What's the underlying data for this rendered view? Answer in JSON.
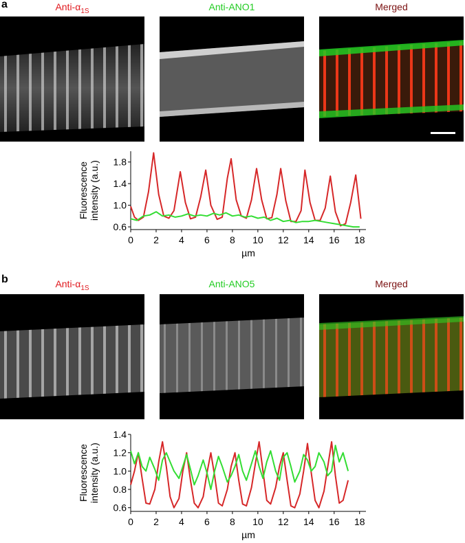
{
  "figure": {
    "a": {
      "letter": "a",
      "titles": {
        "alpha_prefix": "Anti-α",
        "alpha_sub": "1S",
        "ano": "Anti-ANO1",
        "merged": "Merged"
      }
    },
    "b": {
      "letter": "b",
      "titles": {
        "alpha_prefix": "Anti-α",
        "alpha_sub": "1S",
        "ano": "Anti-ANO5",
        "merged": "Merged"
      }
    }
  },
  "colors": {
    "red": "#d62728",
    "green": "#33dd33",
    "title_red": "#e0191e",
    "title_green": "#22cc22",
    "title_merged": "#7a1010"
  },
  "chart_data": [
    {
      "type": "line",
      "title": "",
      "xlabel": "µm",
      "ylabel": "Fluorescence intensity (a.u.)",
      "ylabel_lines": [
        "Fluorescence",
        "intensity (a.u.)"
      ],
      "xlim": [
        0,
        18.5
      ],
      "ylim": [
        0.55,
        2.0
      ],
      "xticks": [
        0,
        2,
        4,
        6,
        8,
        10,
        12,
        14,
        16,
        18
      ],
      "yticks": [
        0.6,
        1.0,
        1.4,
        1.8
      ],
      "ytick_labels": [
        "0.6",
        "1.0",
        "1.4",
        "1.8"
      ],
      "series": [
        {
          "color": "red",
          "x": [
            0.0,
            0.3,
            0.6,
            1.0,
            1.4,
            1.8,
            2.2,
            2.6,
            3.0,
            3.4,
            3.9,
            4.3,
            4.7,
            5.1,
            5.5,
            5.9,
            6.3,
            6.8,
            7.2,
            7.6,
            7.9,
            8.3,
            8.7,
            9.1,
            9.5,
            9.9,
            10.3,
            10.7,
            11.1,
            11.5,
            11.8,
            12.2,
            12.6,
            13.0,
            13.4,
            13.7,
            14.1,
            14.5,
            14.9,
            15.3,
            15.7,
            16.1,
            16.5,
            16.9,
            17.3,
            17.7,
            18.1
          ],
          "y": [
            0.98,
            0.78,
            0.72,
            0.78,
            1.25,
            1.97,
            1.2,
            0.8,
            0.76,
            0.9,
            1.62,
            1.05,
            0.75,
            0.78,
            1.15,
            1.65,
            1.0,
            0.74,
            0.78,
            1.5,
            1.86,
            1.1,
            0.8,
            0.76,
            1.1,
            1.68,
            1.1,
            0.75,
            0.77,
            1.2,
            1.68,
            1.08,
            0.7,
            0.7,
            0.9,
            1.65,
            1.05,
            0.72,
            0.72,
            0.95,
            1.54,
            0.88,
            0.62,
            0.66,
            1.05,
            1.56,
            0.75
          ]
        },
        {
          "color": "green",
          "x": [
            0.0,
            0.5,
            1.0,
            1.5,
            2.0,
            2.5,
            3.0,
            3.5,
            4.0,
            4.5,
            5.0,
            5.5,
            6.0,
            6.5,
            7.0,
            7.5,
            8.0,
            8.5,
            9.0,
            9.5,
            10.0,
            10.5,
            11.0,
            11.5,
            12.0,
            12.5,
            13.0,
            13.5,
            14.0,
            14.5,
            15.0,
            15.5,
            16.0,
            16.5,
            17.0,
            17.5,
            18.0
          ],
          "y": [
            0.75,
            0.72,
            0.8,
            0.82,
            0.88,
            0.8,
            0.82,
            0.78,
            0.8,
            0.84,
            0.8,
            0.82,
            0.8,
            0.85,
            0.82,
            0.86,
            0.8,
            0.82,
            0.78,
            0.8,
            0.76,
            0.78,
            0.72,
            0.76,
            0.7,
            0.72,
            0.68,
            0.7,
            0.7,
            0.72,
            0.7,
            0.68,
            0.66,
            0.64,
            0.62,
            0.6,
            0.6
          ]
        }
      ]
    },
    {
      "type": "line",
      "title": "",
      "xlabel": "µm",
      "ylabel": "Fluorescence intensity (a.u.)",
      "ylabel_lines": [
        "Fluorescence",
        "intensity (a.u.)"
      ],
      "xlim": [
        0,
        18.5
      ],
      "ylim": [
        0.56,
        1.4
      ],
      "xticks": [
        0,
        2,
        4,
        6,
        8,
        10,
        12,
        14,
        16,
        18
      ],
      "yticks": [
        0.6,
        0.8,
        1.0,
        1.2,
        1.4
      ],
      "ytick_labels": [
        "0.6",
        "0.8",
        "1.0",
        "1.2",
        "1.4"
      ],
      "series": [
        {
          "color": "red",
          "x": [
            0.0,
            0.3,
            0.6,
            0.9,
            1.2,
            1.5,
            1.9,
            2.2,
            2.5,
            2.8,
            3.1,
            3.4,
            3.8,
            4.1,
            4.4,
            4.7,
            5.0,
            5.3,
            5.7,
            6.0,
            6.3,
            6.6,
            6.9,
            7.2,
            7.6,
            7.9,
            8.2,
            8.5,
            8.8,
            9.1,
            9.5,
            9.8,
            10.1,
            10.4,
            10.7,
            11.0,
            11.4,
            11.7,
            12.0,
            12.3,
            12.6,
            12.9,
            13.3,
            13.6,
            13.9,
            14.2,
            14.5,
            14.8,
            15.2,
            15.5,
            15.8,
            16.1,
            16.4,
            16.7,
            17.1
          ],
          "y": [
            0.85,
            1.0,
            1.2,
            0.92,
            0.65,
            0.64,
            0.8,
            1.1,
            1.32,
            1.05,
            0.72,
            0.6,
            0.7,
            1.0,
            1.2,
            0.9,
            0.65,
            0.6,
            0.72,
            0.98,
            1.2,
            0.95,
            0.65,
            0.62,
            0.8,
            1.05,
            1.2,
            0.9,
            0.64,
            0.62,
            0.82,
            1.08,
            1.32,
            1.0,
            0.68,
            0.64,
            0.82,
            1.05,
            1.2,
            0.9,
            0.62,
            0.6,
            0.75,
            1.0,
            1.3,
            0.98,
            0.68,
            0.6,
            0.78,
            1.05,
            1.32,
            0.95,
            0.65,
            0.68,
            0.9
          ]
        },
        {
          "color": "green",
          "x": [
            0.0,
            0.3,
            0.6,
            0.9,
            1.2,
            1.5,
            1.9,
            2.2,
            2.5,
            2.8,
            3.1,
            3.4,
            3.8,
            4.1,
            4.4,
            4.7,
            5.0,
            5.3,
            5.7,
            6.0,
            6.3,
            6.6,
            6.9,
            7.2,
            7.6,
            7.9,
            8.2,
            8.5,
            8.8,
            9.1,
            9.5,
            9.8,
            10.1,
            10.4,
            10.7,
            11.0,
            11.4,
            11.7,
            12.0,
            12.3,
            12.6,
            12.9,
            13.3,
            13.6,
            13.9,
            14.2,
            14.5,
            14.8,
            15.2,
            15.5,
            15.8,
            16.1,
            16.4,
            16.7,
            17.1
          ],
          "y": [
            1.22,
            1.08,
            1.2,
            1.05,
            1.0,
            1.15,
            1.02,
            0.9,
            1.12,
            1.2,
            1.1,
            1.0,
            0.92,
            1.05,
            1.18,
            1.02,
            0.85,
            0.95,
            1.12,
            0.98,
            0.8,
            1.0,
            1.16,
            1.05,
            0.88,
            0.95,
            1.05,
            1.18,
            1.0,
            0.9,
            1.08,
            1.22,
            1.05,
            0.92,
            1.1,
            1.22,
            1.0,
            0.9,
            1.15,
            1.2,
            1.05,
            0.88,
            1.0,
            1.18,
            1.12,
            1.0,
            1.05,
            1.2,
            1.1,
            0.95,
            1.0,
            1.28,
            1.1,
            1.2,
            1.0
          ]
        }
      ]
    }
  ]
}
